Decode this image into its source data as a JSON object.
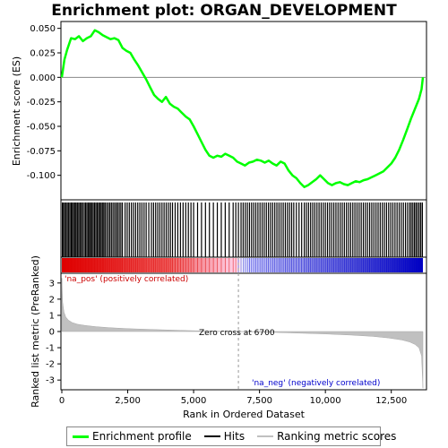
{
  "chart_data": {
    "type": "line",
    "title": "Enrichment plot: ORGAN_DEVELOPMENT",
    "top_panel": {
      "ylabel": "Enrichment score (ES)",
      "ylim": [
        -0.125,
        0.057
      ],
      "yticks": [
        0.05,
        0.025,
        0.0,
        -0.025,
        -0.05,
        -0.075,
        -0.1
      ],
      "ytick_labels": [
        "0.050",
        "0.025",
        "0.000",
        "-0.025",
        "-0.050",
        "-0.075",
        "-0.100"
      ],
      "series": [
        {
          "name": "Enrichment profile",
          "color": "#00ff00",
          "x": [
            0,
            100,
            200,
            350,
            500,
            650,
            800,
            950,
            1100,
            1250,
            1400,
            1550,
            1700,
            1850,
            2000,
            2150,
            2300,
            2450,
            2600,
            2750,
            2900,
            3050,
            3200,
            3350,
            3500,
            3650,
            3800,
            3950,
            4100,
            4250,
            4400,
            4550,
            4700,
            4850,
            5000,
            5150,
            5300,
            5450,
            5600,
            5750,
            5900,
            6050,
            6200,
            6350,
            6500,
            6650,
            6800,
            6950,
            7100,
            7250,
            7400,
            7550,
            7700,
            7850,
            8000,
            8150,
            8300,
            8450,
            8600,
            8750,
            8900,
            9050,
            9200,
            9350,
            9500,
            9650,
            9800,
            9950,
            10100,
            10250,
            10400,
            10550,
            10700,
            10850,
            11000,
            11150,
            11300,
            11450,
            11600,
            11750,
            11900,
            12050,
            12200,
            12350,
            12500,
            12650,
            12800,
            12950,
            13100,
            13250,
            13400,
            13550,
            13650,
            13700
          ],
          "y": [
            0.0,
            0.018,
            0.028,
            0.04,
            0.039,
            0.042,
            0.037,
            0.04,
            0.042,
            0.048,
            0.046,
            0.043,
            0.041,
            0.039,
            0.04,
            0.038,
            0.03,
            0.027,
            0.025,
            0.018,
            0.012,
            0.005,
            -0.002,
            -0.01,
            -0.018,
            -0.022,
            -0.025,
            -0.02,
            -0.027,
            -0.03,
            -0.032,
            -0.036,
            -0.04,
            -0.043,
            -0.05,
            -0.058,
            -0.066,
            -0.074,
            -0.08,
            -0.082,
            -0.08,
            -0.081,
            -0.078,
            -0.08,
            -0.082,
            -0.086,
            -0.088,
            -0.09,
            -0.087,
            -0.086,
            -0.084,
            -0.085,
            -0.087,
            -0.085,
            -0.088,
            -0.09,
            -0.086,
            -0.088,
            -0.095,
            -0.1,
            -0.103,
            -0.108,
            -0.112,
            -0.11,
            -0.107,
            -0.104,
            -0.1,
            -0.104,
            -0.108,
            -0.11,
            -0.108,
            -0.107,
            -0.109,
            -0.11,
            -0.108,
            -0.106,
            -0.107,
            -0.105,
            -0.104,
            -0.102,
            -0.1,
            -0.098,
            -0.096,
            -0.092,
            -0.088,
            -0.082,
            -0.074,
            -0.064,
            -0.053,
            -0.042,
            -0.032,
            -0.022,
            -0.012,
            0.0
          ]
        }
      ],
      "baseline": 0.0
    },
    "hits_panel": {
      "name": "Hits",
      "hit_positions": [
        20,
        60,
        110,
        160,
        210,
        260,
        310,
        360,
        400,
        450,
        500,
        540,
        590,
        640,
        690,
        740,
        790,
        850,
        900,
        950,
        1000,
        1050,
        1090,
        1140,
        1190,
        1240,
        1290,
        1340,
        1390,
        1440,
        1490,
        1540,
        1590,
        1640,
        1700,
        1760,
        1820,
        1880,
        1940,
        2000,
        2060,
        2120,
        2180,
        2240,
        2300,
        2400,
        2480,
        2560,
        2640,
        2720,
        2800,
        2880,
        2960,
        3040,
        3120,
        3200,
        3300,
        3400,
        3480,
        3560,
        3640,
        3720,
        3800,
        3880,
        3960,
        4040,
        4120,
        4200,
        4300,
        4400,
        4500,
        4600,
        4700,
        4800,
        4900,
        5000,
        5150,
        5300,
        5450,
        5600,
        5750,
        5900,
        6050,
        6200,
        6350,
        6500,
        6600,
        6700,
        6800,
        6880,
        6960,
        7040,
        7120,
        7200,
        7280,
        7360,
        7440,
        7520,
        7600,
        7680,
        7760,
        7840,
        7920,
        8000,
        8080,
        8160,
        8240,
        8320,
        8400,
        8480,
        8560,
        8640,
        8720,
        8800,
        8900,
        9000,
        9100,
        9200,
        9280,
        9360,
        9440,
        9520,
        9600,
        9680,
        9760,
        9840,
        9920,
        10000,
        10080,
        10160,
        10240,
        10320,
        10400,
        10480,
        10560,
        10640,
        10720,
        10800,
        10880,
        10960,
        11040,
        11120,
        11200,
        11280,
        11360,
        11440,
        11520,
        11600,
        11680,
        11760,
        11840,
        11920,
        12000,
        12080,
        12160,
        12240,
        12320,
        12400,
        12480,
        12560,
        12640,
        12720,
        12800,
        12880,
        12960,
        13040,
        13120,
        13200,
        13260,
        13320,
        13380,
        13440,
        13500,
        13560,
        13620,
        13680
      ]
    },
    "bottom_panel": {
      "name": "Ranking metric scores",
      "ylabel": "Ranked list metric (PreRanked)",
      "xlabel": "Rank in Ordered Dataset",
      "ylim": [
        -3.6,
        3.6
      ],
      "yticks": [
        3,
        2,
        1,
        0,
        -1,
        -2,
        -3
      ],
      "ytick_labels": [
        "3",
        "2",
        "1",
        "0",
        "-1",
        "-2",
        "-3"
      ],
      "profile_x": [
        0,
        30,
        80,
        150,
        250,
        400,
        600,
        900,
        1300,
        1800,
        2500,
        3500,
        4500,
        5500,
        6700,
        8000,
        9000,
        10000,
        11000,
        11800,
        12400,
        12900,
        13200,
        13400,
        13550,
        13650,
        13700
      ],
      "profile_y": [
        3.3,
        1.8,
        1.2,
        0.9,
        0.7,
        0.55,
        0.45,
        0.37,
        0.3,
        0.24,
        0.18,
        0.12,
        0.07,
        0.03,
        0.0,
        -0.05,
        -0.1,
        -0.15,
        -0.22,
        -0.3,
        -0.4,
        -0.52,
        -0.65,
        -0.8,
        -1.0,
        -1.5,
        -3.5
      ]
    },
    "xlim": [
      0,
      13700
    ],
    "xticks": [
      0,
      2500,
      5000,
      7500,
      10000,
      12500
    ],
    "xtick_labels": [
      "0",
      "2,500",
      "5,000",
      "7,500",
      "10,000",
      "12,500"
    ],
    "zero_cross": 6700,
    "annotations": {
      "pos_label": "'na_pos' (positively correlated)",
      "neg_label": "'na_neg' (negatively correlated)",
      "zero_cross_label": "Zero cross at 6700"
    },
    "legend": [
      {
        "label": "Enrichment profile",
        "color": "#00ff00"
      },
      {
        "label": "Hits",
        "color": "#000000"
      },
      {
        "label": "Ranking metric scores",
        "color": "#c0c0c0"
      }
    ],
    "colors": {
      "profile": "#00ff00",
      "hits": "#000000",
      "metric_fill": "#c0c0c0",
      "pos_text": "#cc0000",
      "neg_text": "#0000cc",
      "pos_bar": "#dd0000",
      "neg_bar": "#0000cc"
    }
  }
}
